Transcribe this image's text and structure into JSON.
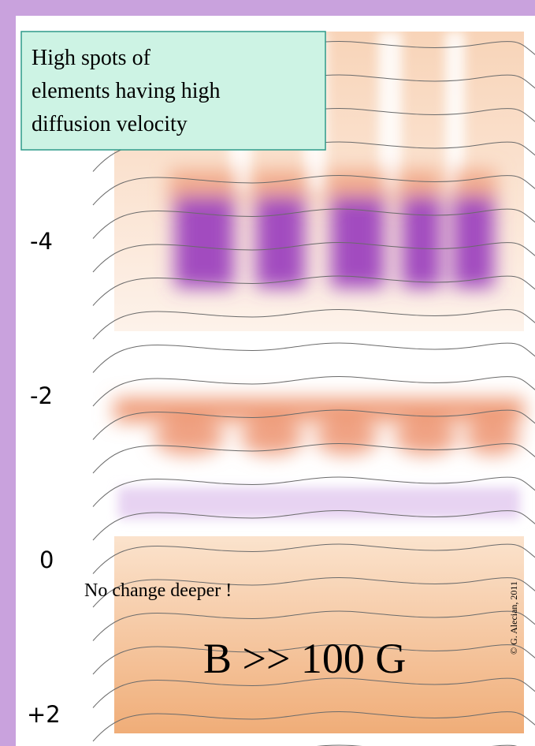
{
  "callout": {
    "lines": [
      "High spots of",
      "elements having high",
      "diffusion velocity"
    ]
  },
  "depth_labels": [
    "-4",
    "-2",
    "0",
    "+2"
  ],
  "note": "No change deeper !",
  "field": "B >> 100 G",
  "credit": "© G. Alecian,  2011"
}
